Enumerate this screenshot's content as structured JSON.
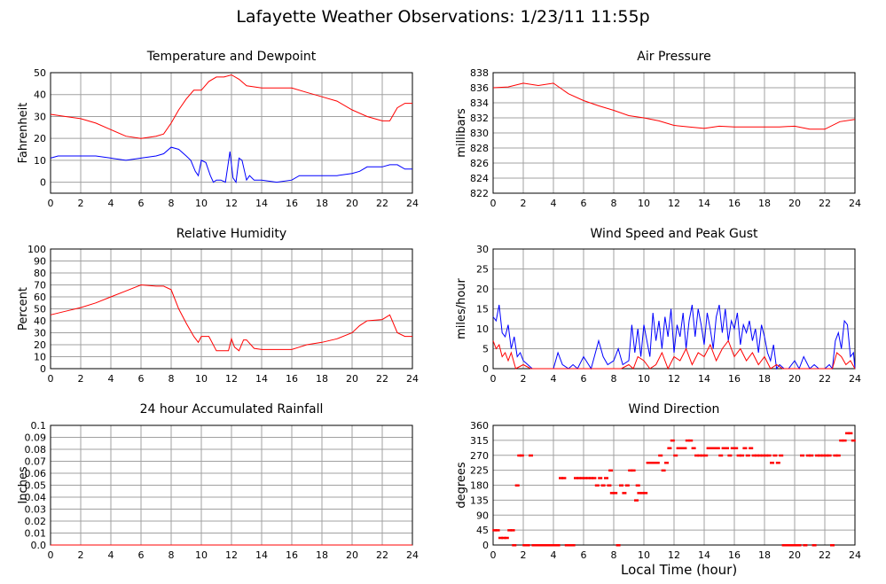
{
  "title": "Lafayette Weather Observations: 1/23/11 11:55p",
  "x_axis_title": "Local Time (hour)",
  "colors": {
    "red": "#ff0000",
    "blue": "#0000ff",
    "grid": "#a0a0a0",
    "frame": "#000000"
  },
  "chart_data": [
    {
      "type": "line",
      "title": "Temperature and Dewpoint",
      "ylabel": "Fahrenheit",
      "xlim": [
        0,
        24
      ],
      "ylim": [
        -5,
        50
      ],
      "xticks": [
        0,
        2,
        4,
        6,
        8,
        10,
        12,
        14,
        16,
        18,
        20,
        22,
        24
      ],
      "yticks": [
        0,
        10,
        20,
        30,
        40,
        50
      ],
      "grid": true,
      "series": [
        {
          "color": "#ff0000",
          "x": [
            0,
            1,
            2,
            3,
            4,
            5,
            6,
            7,
            7.5,
            8,
            8.5,
            9,
            9.5,
            10,
            10.5,
            11,
            11.5,
            12,
            12.5,
            13,
            14,
            15,
            16,
            17,
            18,
            19,
            20,
            21,
            22,
            22.5,
            23,
            23.5,
            24
          ],
          "y": [
            31,
            30,
            29,
            27,
            24,
            21,
            20,
            21,
            22,
            27,
            33,
            38,
            42,
            42,
            46,
            48,
            48,
            49,
            47,
            44,
            43,
            43,
            43,
            41,
            39,
            37,
            33,
            30,
            28,
            28,
            34,
            36,
            36
          ]
        },
        {
          "color": "#0000ff",
          "x": [
            0,
            0.5,
            1,
            2,
            3,
            4,
            5,
            6,
            7,
            7.5,
            8,
            8.5,
            9,
            9.3,
            9.6,
            9.8,
            10,
            10.3,
            10.6,
            10.8,
            11,
            11.3,
            11.6,
            11.9,
            12.1,
            12.3,
            12.5,
            12.7,
            13,
            13.2,
            13.5,
            14,
            15,
            16,
            16.5,
            17,
            18,
            19,
            20,
            20.5,
            21,
            22,
            22.5,
            23,
            23.5,
            24
          ],
          "y": [
            11,
            12,
            12,
            12,
            12,
            11,
            10,
            11,
            12,
            13,
            16,
            15,
            12,
            10,
            5,
            3,
            10,
            9,
            3,
            0,
            1,
            1,
            0,
            14,
            2,
            0,
            11,
            10,
            1,
            3,
            1,
            1,
            0,
            1,
            3,
            3,
            3,
            3,
            4,
            5,
            7,
            7,
            8,
            8,
            6,
            6
          ]
        }
      ]
    },
    {
      "type": "line",
      "title": "Air Pressure",
      "ylabel": "millibars",
      "xlim": [
        0,
        24
      ],
      "ylim": [
        822,
        838
      ],
      "xticks": [
        0,
        2,
        4,
        6,
        8,
        10,
        12,
        14,
        16,
        18,
        20,
        22,
        24
      ],
      "yticks": [
        822,
        824,
        826,
        828,
        830,
        832,
        834,
        836,
        838
      ],
      "grid": true,
      "series": [
        {
          "color": "#ff0000",
          "x": [
            0,
            1,
            2,
            3,
            4,
            5,
            6,
            7,
            8,
            9,
            10,
            11,
            12,
            13,
            14,
            15,
            16,
            17,
            18,
            19,
            20,
            21,
            22,
            23,
            24
          ],
          "y": [
            836,
            836.1,
            836.6,
            836.3,
            836.6,
            835.2,
            834.3,
            833.6,
            833,
            832.3,
            832,
            831.6,
            831,
            830.8,
            830.6,
            830.9,
            830.8,
            830.8,
            830.8,
            830.8,
            830.9,
            830.5,
            830.5,
            831.5,
            831.8
          ]
        }
      ]
    },
    {
      "type": "line",
      "title": "Relative Humidity",
      "ylabel": "Percent",
      "xlim": [
        0,
        24
      ],
      "ylim": [
        0,
        100
      ],
      "xticks": [
        0,
        2,
        4,
        6,
        8,
        10,
        12,
        14,
        16,
        18,
        20,
        22,
        24
      ],
      "yticks": [
        0,
        10,
        20,
        30,
        40,
        50,
        60,
        70,
        80,
        90,
        100
      ],
      "grid": true,
      "series": [
        {
          "color": "#ff0000",
          "x": [
            0,
            1,
            2,
            3,
            4,
            5,
            6,
            7,
            7.5,
            8,
            8.5,
            9,
            9.5,
            9.8,
            10,
            10.5,
            11,
            11.5,
            11.8,
            12,
            12.2,
            12.5,
            12.8,
            13,
            13.5,
            14,
            15,
            16,
            16.5,
            17,
            18,
            19,
            20,
            20.5,
            21,
            22,
            22.5,
            23,
            23.5,
            24
          ],
          "y": [
            45,
            48,
            51,
            55,
            60,
            65,
            70,
            69,
            69,
            66,
            50,
            38,
            27,
            22,
            27,
            27,
            15,
            15,
            15,
            25,
            18,
            15,
            24,
            24,
            17,
            16,
            16,
            16,
            18,
            20,
            22,
            25,
            30,
            36,
            40,
            41,
            45,
            30,
            27,
            27
          ]
        }
      ]
    },
    {
      "type": "line",
      "title": "Wind Speed and Peak Gust",
      "ylabel": "miles/hour",
      "xlim": [
        0,
        24
      ],
      "ylim": [
        0,
        30
      ],
      "xticks": [
        0,
        2,
        4,
        6,
        8,
        10,
        12,
        14,
        16,
        18,
        20,
        22,
        24
      ],
      "yticks": [
        0,
        5,
        10,
        15,
        20,
        25,
        30
      ],
      "grid": true,
      "series": [
        {
          "color": "#0000ff",
          "x": [
            0,
            0.2,
            0.4,
            0.6,
            0.8,
            1,
            1.2,
            1.4,
            1.6,
            1.8,
            2,
            2.3,
            2.6,
            3,
            3.5,
            4,
            4.3,
            4.6,
            5,
            5.3,
            5.6,
            6,
            6.5,
            7,
            7.3,
            7.6,
            8,
            8.3,
            8.6,
            9,
            9.2,
            9.4,
            9.6,
            9.8,
            10,
            10.2,
            10.4,
            10.6,
            10.8,
            11,
            11.2,
            11.4,
            11.6,
            11.8,
            12,
            12.2,
            12.4,
            12.6,
            12.8,
            13,
            13.2,
            13.4,
            13.6,
            13.8,
            14,
            14.2,
            14.4,
            14.6,
            14.8,
            15,
            15.2,
            15.4,
            15.6,
            15.8,
            16,
            16.2,
            16.4,
            16.6,
            16.8,
            17,
            17.2,
            17.4,
            17.6,
            17.8,
            18,
            18.2,
            18.4,
            18.6,
            18.8,
            19,
            19.3,
            19.6,
            20,
            20.3,
            20.6,
            21,
            21.3,
            21.6,
            22,
            22.3,
            22.5,
            22.7,
            22.9,
            23.1,
            23.3,
            23.5,
            23.7,
            23.9,
            24
          ],
          "y": [
            13,
            12,
            16,
            9,
            8,
            11,
            5,
            8,
            3,
            4,
            2,
            1,
            0,
            0,
            0,
            0,
            4,
            1,
            0,
            1,
            0,
            3,
            0,
            7,
            3,
            1,
            2,
            5,
            1,
            2,
            11,
            4,
            10,
            3,
            11,
            7,
            3,
            14,
            7,
            12,
            5,
            13,
            8,
            15,
            4,
            11,
            8,
            14,
            5,
            12,
            16,
            8,
            15,
            11,
            6,
            14,
            10,
            5,
            13,
            16,
            9,
            15,
            7,
            12,
            10,
            14,
            6,
            11,
            9,
            12,
            7,
            10,
            4,
            11,
            8,
            4,
            2,
            6,
            0,
            1,
            0,
            0,
            2,
            0,
            3,
            0,
            1,
            0,
            0,
            1,
            0,
            7,
            9,
            5,
            12,
            11,
            3,
            4,
            0
          ]
        },
        {
          "color": "#ff0000",
          "x": [
            0,
            0.2,
            0.4,
            0.6,
            0.8,
            1,
            1.2,
            1.5,
            2,
            2.5,
            3,
            8.5,
            9,
            9.3,
            9.6,
            10,
            10.4,
            10.8,
            11.2,
            11.6,
            12,
            12.4,
            12.8,
            13.2,
            13.6,
            14,
            14.4,
            14.8,
            15.2,
            15.6,
            16,
            16.4,
            16.8,
            17.2,
            17.6,
            18,
            18.4,
            18.8,
            19.2,
            22.5,
            22.8,
            23.1,
            23.4,
            23.7,
            24
          ],
          "y": [
            7,
            5,
            6,
            3,
            4,
            2,
            4,
            0,
            1,
            0,
            0,
            0,
            1,
            0,
            3,
            2,
            0,
            1,
            4,
            0,
            3,
            2,
            5,
            1,
            4,
            3,
            6,
            2,
            5,
            7,
            3,
            5,
            2,
            4,
            1,
            3,
            0,
            1,
            0,
            0,
            4,
            3,
            1,
            2,
            0
          ]
        }
      ]
    },
    {
      "type": "line",
      "title": "24 hour Accumulated Rainfall",
      "ylabel": "Inches",
      "xlim": [
        0,
        24
      ],
      "ylim": [
        0,
        0.1
      ],
      "xticks": [
        0,
        2,
        4,
        6,
        8,
        10,
        12,
        14,
        16,
        18,
        20,
        22,
        24
      ],
      "yticks": [
        "0.0",
        "0.01",
        "0.02",
        "0.03",
        "0.04",
        "0.05",
        "0.06",
        "0.07",
        "0.08",
        "0.09",
        "0.1"
      ],
      "grid": true,
      "series": [
        {
          "color": "#ff0000",
          "x": [
            0,
            24
          ],
          "y": [
            0,
            0
          ]
        }
      ]
    },
    {
      "type": "scatter",
      "title": "Wind Direction",
      "ylabel": "degrees",
      "xlim": [
        0,
        24
      ],
      "ylim": [
        0,
        360
      ],
      "xticks": [
        0,
        2,
        4,
        6,
        8,
        10,
        12,
        14,
        16,
        18,
        20,
        22,
        24
      ],
      "yticks": [
        0,
        45,
        90,
        135,
        180,
        225,
        270,
        315,
        360
      ],
      "grid": true,
      "series": [
        {
          "color": "#ff0000",
          "x": [
            0.1,
            0.3,
            0.5,
            0.7,
            0.9,
            1.1,
            1.3,
            1.4,
            1.6,
            1.75,
            1.9,
            2.1,
            2.3,
            2.5,
            2.7,
            2.9,
            3.1,
            3.3,
            3.5,
            3.7,
            3.9,
            4.1,
            4.3,
            4.5,
            4.7,
            4.9,
            5.1,
            5.3,
            5.5,
            5.7,
            5.9,
            6.1,
            6.3,
            6.5,
            6.7,
            6.9,
            7.1,
            7.3,
            7.5,
            7.7,
            7.8,
            7.9,
            8.1,
            8.3,
            8.5,
            8.7,
            8.9,
            9.1,
            9.3,
            9.5,
            9.6,
            9.7,
            9.9,
            10.1,
            10.3,
            10.5,
            10.7,
            10.9,
            11.1,
            11.3,
            11.5,
            11.7,
            11.9,
            12.1,
            12.3,
            12.5,
            12.7,
            12.9,
            13.1,
            13.3,
            13.5,
            13.7,
            13.9,
            14.1,
            14.3,
            14.5,
            14.7,
            14.9,
            15.1,
            15.3,
            15.5,
            15.7,
            15.9,
            16.1,
            16.3,
            16.5,
            16.7,
            16.9,
            17.1,
            17.3,
            17.5,
            17.7,
            17.9,
            18.1,
            18.3,
            18.5,
            18.7,
            18.9,
            19.1,
            19.3,
            19.5,
            19.7,
            19.9,
            20.1,
            20.3,
            20.5,
            20.7,
            20.9,
            21.1,
            21.3,
            21.5,
            21.7,
            21.9,
            22.1,
            22.3,
            22.5,
            22.7,
            22.9,
            23.1,
            23.3,
            23.5,
            23.7,
            23.9
          ],
          "y": [
            45,
            45,
            22,
            22,
            22,
            45,
            45,
            0,
            180,
            270,
            270,
            0,
            0,
            270,
            0,
            0,
            0,
            0,
            0,
            0,
            0,
            0,
            0,
            202,
            202,
            0,
            0,
            0,
            202,
            202,
            202,
            202,
            202,
            202,
            202,
            180,
            202,
            180,
            202,
            180,
            225,
            157,
            157,
            0,
            180,
            157,
            180,
            225,
            225,
            135,
            180,
            157,
            157,
            157,
            248,
            248,
            248,
            248,
            270,
            225,
            248,
            292,
            315,
            270,
            292,
            292,
            292,
            315,
            315,
            292,
            270,
            270,
            270,
            270,
            292,
            292,
            292,
            292,
            270,
            292,
            292,
            270,
            292,
            292,
            270,
            270,
            292,
            270,
            292,
            270,
            270,
            270,
            270,
            270,
            270,
            248,
            270,
            248,
            270,
            0,
            0,
            0,
            0,
            0,
            0,
            270,
            0,
            270,
            270,
            0,
            270,
            270,
            270,
            270,
            270,
            0,
            270,
            270,
            315,
            315,
            337,
            337,
            315
          ]
        }
      ]
    }
  ]
}
